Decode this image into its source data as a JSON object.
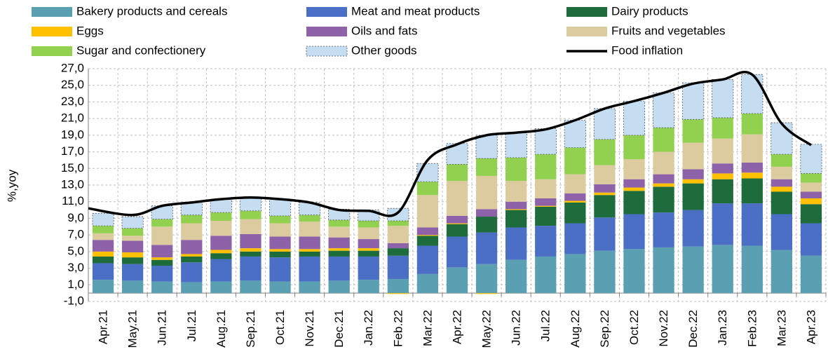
{
  "chart_data": {
    "type": "bar",
    "stacked": true,
    "ylabel": "%,yoy",
    "categories": [
      "Apr.21",
      "May.21",
      "Jun.21",
      "Jul.21",
      "Aug.21",
      "Sep.21",
      "Oct.21",
      "Nov.21",
      "Dec.21",
      "Jan.22",
      "Feb.22",
      "Mar.22",
      "Apr.22",
      "May.22",
      "Jun.22",
      "Jul.22",
      "Aug.22",
      "Sep.22",
      "Oct.22",
      "Nov.22",
      "Dec.22",
      "Jan.23",
      "Feb.23",
      "Mar.23",
      "Apr.23"
    ],
    "series": [
      {
        "name": "Bakery products and cereals",
        "color": "#5b9fb3",
        "values": [
          1.6,
          1.5,
          1.4,
          1.3,
          1.4,
          1.5,
          1.4,
          1.4,
          1.5,
          1.6,
          1.7,
          2.3,
          3.1,
          3.5,
          4.0,
          4.4,
          4.7,
          5.1,
          5.3,
          5.5,
          5.6,
          5.8,
          5.7,
          5.2,
          4.5
        ]
      },
      {
        "name": "Meat and meat products",
        "color": "#4a6fc4",
        "values": [
          2.0,
          2.0,
          1.9,
          2.4,
          2.7,
          2.9,
          2.9,
          3.0,
          2.9,
          2.8,
          2.8,
          3.4,
          3.7,
          3.8,
          3.9,
          3.7,
          3.7,
          4.0,
          4.2,
          4.2,
          4.4,
          5.0,
          5.1,
          4.3,
          3.9
        ]
      },
      {
        "name": "Dairy products",
        "color": "#1e6b3c",
        "values": [
          0.8,
          0.8,
          0.7,
          0.7,
          0.7,
          0.6,
          0.7,
          0.6,
          0.7,
          0.7,
          0.9,
          1.2,
          1.5,
          1.9,
          2.1,
          2.3,
          2.5,
          2.7,
          2.8,
          3.1,
          3.2,
          2.9,
          3.0,
          2.7,
          2.3
        ]
      },
      {
        "name": "Eggs",
        "color": "#ffc000",
        "values": [
          0.6,
          0.6,
          0.3,
          0.3,
          0.4,
          0.4,
          0.3,
          0.3,
          0.3,
          0.3,
          -0.1,
          0.1,
          0.1,
          -0.1,
          0.1,
          0.1,
          0.2,
          0.3,
          0.4,
          0.4,
          0.5,
          0.7,
          0.7,
          0.6,
          0.7
        ]
      },
      {
        "name": "Oils and fats",
        "color": "#8e62a8",
        "values": [
          1.4,
          1.4,
          1.5,
          1.7,
          1.7,
          1.7,
          1.5,
          1.5,
          1.3,
          1.1,
          0.6,
          0.9,
          0.9,
          0.9,
          0.9,
          0.9,
          0.9,
          1.0,
          1.0,
          1.1,
          1.2,
          1.2,
          1.2,
          0.9,
          0.8
        ]
      },
      {
        "name": "Fruits and vegetables",
        "color": "#dccb9e",
        "values": [
          0.8,
          0.6,
          2.2,
          2.0,
          1.8,
          1.8,
          1.6,
          1.8,
          1.3,
          1.4,
          2.1,
          3.9,
          4.2,
          4.0,
          2.5,
          2.3,
          2.3,
          2.3,
          2.4,
          2.7,
          3.2,
          3.0,
          3.4,
          1.5,
          1.1
        ]
      },
      {
        "name": "Sugar and confectionery",
        "color": "#92d050",
        "values": [
          0.9,
          0.9,
          0.9,
          1.0,
          1.0,
          1.0,
          0.9,
          0.8,
          0.8,
          0.8,
          0.6,
          1.6,
          2.0,
          2.1,
          2.8,
          3.0,
          3.2,
          3.1,
          2.9,
          2.9,
          2.8,
          2.5,
          2.5,
          1.5,
          1.1
        ]
      },
      {
        "name": "Other goods",
        "color": "#c5ddf1",
        "values": [
          1.5,
          1.4,
          1.6,
          1.5,
          1.6,
          1.6,
          2.0,
          1.5,
          1.3,
          1.3,
          1.5,
          2.2,
          2.5,
          2.8,
          3.0,
          3.1,
          3.3,
          3.7,
          4.1,
          4.2,
          4.4,
          4.6,
          4.7,
          3.8,
          3.5
        ]
      }
    ],
    "line": {
      "name": "Food inflation",
      "color": "#000000",
      "values": [
        10.2,
        9.4,
        10.5,
        10.9,
        11.3,
        11.5,
        11.3,
        10.9,
        10.0,
        9.9,
        9.7,
        16.0,
        17.9,
        19.0,
        19.3,
        19.7,
        20.8,
        22.2,
        23.1,
        24.1,
        25.2,
        25.7,
        26.3,
        20.4,
        17.8
      ]
    },
    "ylim": [
      -1,
      27
    ],
    "yticks": [
      {
        "value": -1,
        "label": "-1,0"
      },
      {
        "value": 1,
        "label": "1,0"
      },
      {
        "value": 3,
        "label": "3,0"
      },
      {
        "value": 5,
        "label": "5,0"
      },
      {
        "value": 7,
        "label": "7,0"
      },
      {
        "value": 9,
        "label": "9,0"
      },
      {
        "value": 11,
        "label": "11,0"
      },
      {
        "value": 13,
        "label": "13,0"
      },
      {
        "value": 15,
        "label": "15,0"
      },
      {
        "value": 17,
        "label": "17,0"
      },
      {
        "value": 19,
        "label": "19,0"
      },
      {
        "value": 21,
        "label": "21,0"
      },
      {
        "value": 23,
        "label": "23,0"
      },
      {
        "value": 25,
        "label": "25,0"
      },
      {
        "value": 27,
        "label": "27,0"
      }
    ],
    "grid": true
  }
}
